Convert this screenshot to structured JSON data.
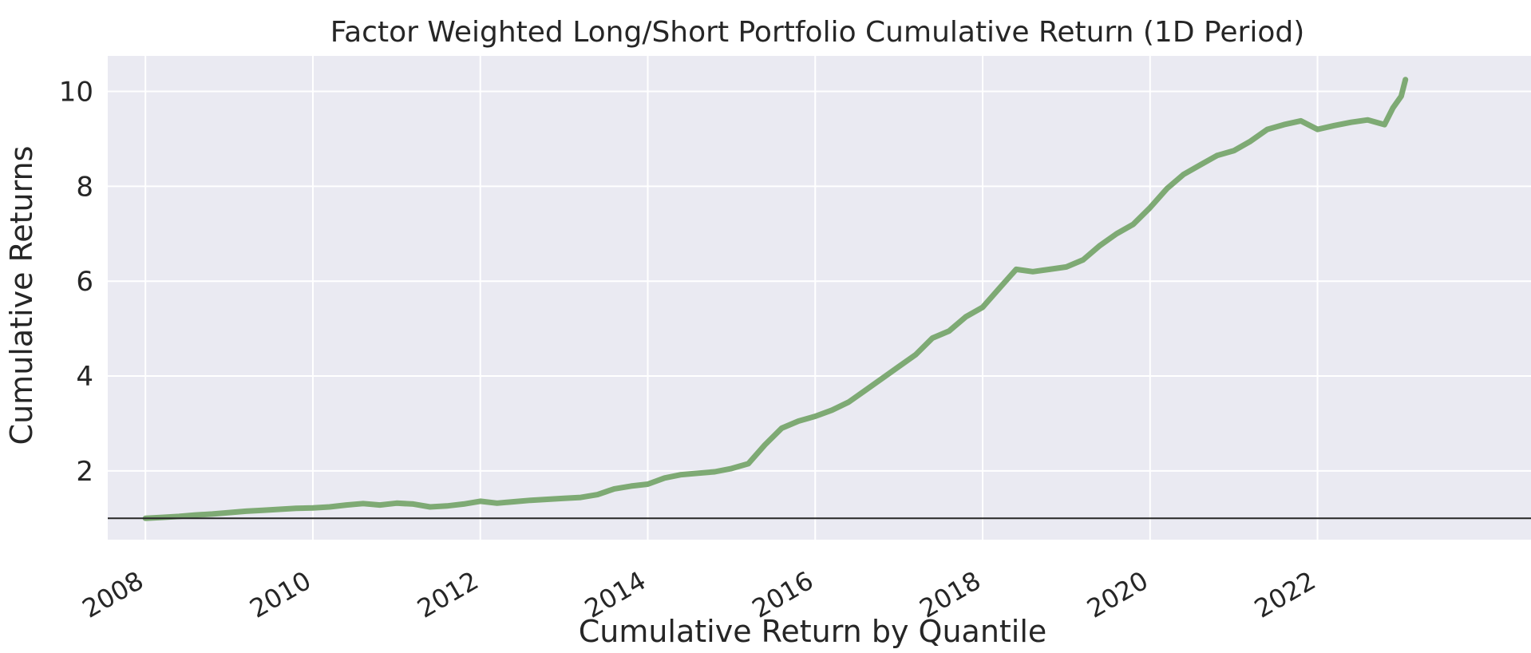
{
  "chart_data": {
    "type": "line",
    "title": "Factor Weighted Long/Short Portfolio Cumulative Return (1D Period)",
    "xlabel": "Cumulative Return by Quantile",
    "ylabel": "Cumulative Returns",
    "xlim": [
      2007.55,
      2024.55
    ],
    "ylim": [
      0.55,
      10.75
    ],
    "x_ticks": [
      2008,
      2010,
      2012,
      2014,
      2016,
      2018,
      2020,
      2022
    ],
    "x_tick_labels": [
      "2008",
      "2010",
      "2012",
      "2014",
      "2016",
      "2018",
      "2020",
      "2022"
    ],
    "y_ticks": [
      2,
      4,
      6,
      8,
      10
    ],
    "y_tick_labels": [
      "2",
      "4",
      "6",
      "8",
      "10"
    ],
    "grid": true,
    "reference_line": {
      "y": 1.0,
      "color": "#262626"
    },
    "colors": {
      "background": "#eaeaf2",
      "grid": "#ffffff",
      "series": "#7eaa74"
    },
    "series": [
      {
        "x": [
          2008.0,
          2008.2,
          2008.4,
          2008.6,
          2008.8,
          2009.0,
          2009.2,
          2009.4,
          2009.6,
          2009.8,
          2010.0,
          2010.2,
          2010.4,
          2010.6,
          2010.8,
          2011.0,
          2011.2,
          2011.4,
          2011.6,
          2011.8,
          2012.0,
          2012.2,
          2012.4,
          2012.6,
          2012.8,
          2013.0,
          2013.2,
          2013.4,
          2013.6,
          2013.8,
          2014.0,
          2014.2,
          2014.4,
          2014.6,
          2014.8,
          2015.0,
          2015.2,
          2015.4,
          2015.6,
          2015.8,
          2016.0,
          2016.2,
          2016.4,
          2016.6,
          2016.8,
          2017.0,
          2017.2,
          2017.4,
          2017.6,
          2017.8,
          2018.0,
          2018.2,
          2018.4,
          2018.6,
          2018.8,
          2019.0,
          2019.2,
          2019.4,
          2019.6,
          2019.8,
          2020.0,
          2020.2,
          2020.4,
          2020.6,
          2020.8,
          2021.0,
          2021.2,
          2021.4,
          2021.6,
          2021.8,
          2022.0,
          2022.2,
          2022.4,
          2022.6,
          2022.8,
          2022.9,
          2023.0,
          2023.05
        ],
        "values": [
          1.0,
          1.02,
          1.04,
          1.07,
          1.09,
          1.12,
          1.15,
          1.17,
          1.19,
          1.21,
          1.22,
          1.24,
          1.28,
          1.31,
          1.28,
          1.32,
          1.3,
          1.24,
          1.26,
          1.3,
          1.36,
          1.32,
          1.35,
          1.38,
          1.4,
          1.42,
          1.44,
          1.5,
          1.62,
          1.68,
          1.72,
          1.85,
          1.92,
          1.95,
          1.98,
          2.05,
          2.15,
          2.55,
          2.9,
          3.05,
          3.15,
          3.28,
          3.45,
          3.7,
          3.95,
          4.2,
          4.45,
          4.8,
          4.95,
          5.25,
          5.45,
          5.85,
          6.25,
          6.2,
          6.25,
          6.3,
          6.45,
          6.75,
          7.0,
          7.2,
          7.55,
          7.95,
          8.25,
          8.45,
          8.65,
          8.75,
          8.95,
          9.2,
          9.3,
          9.38,
          9.2,
          9.28,
          9.35,
          9.4,
          9.3,
          9.65,
          9.9,
          10.25
        ]
      }
    ]
  }
}
